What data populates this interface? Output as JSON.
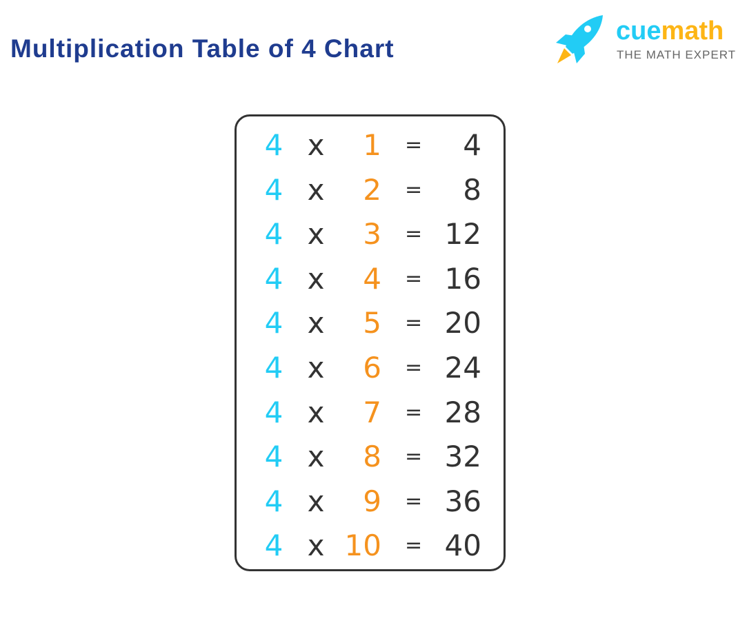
{
  "title": "Multiplication Table of 4 Chart",
  "logo": {
    "brand_part1": "cue",
    "brand_part2": "math",
    "tagline": "THE MATH EXPERT",
    "icon": "rocket-icon"
  },
  "colors": {
    "title": "#1f3c8f",
    "multiplicand": "#22ccf5",
    "multiplier": "#f5921e",
    "text": "#333333"
  },
  "rows": [
    {
      "a": "4",
      "op": "x",
      "b": "1",
      "eq": "=",
      "r": "4"
    },
    {
      "a": "4",
      "op": "x",
      "b": "2",
      "eq": "=",
      "r": "8"
    },
    {
      "a": "4",
      "op": "x",
      "b": "3",
      "eq": "=",
      "r": "12"
    },
    {
      "a": "4",
      "op": "x",
      "b": "4",
      "eq": "=",
      "r": "16"
    },
    {
      "a": "4",
      "op": "x",
      "b": "5",
      "eq": "=",
      "r": "20"
    },
    {
      "a": "4",
      "op": "x",
      "b": "6",
      "eq": "=",
      "r": "24"
    },
    {
      "a": "4",
      "op": "x",
      "b": "7",
      "eq": "=",
      "r": "28"
    },
    {
      "a": "4",
      "op": "x",
      "b": "8",
      "eq": "=",
      "r": "32"
    },
    {
      "a": "4",
      "op": "x",
      "b": "9",
      "eq": "=",
      "r": "36"
    },
    {
      "a": "4",
      "op": "x",
      "b": "10",
      "eq": "=",
      "r": "40"
    }
  ]
}
